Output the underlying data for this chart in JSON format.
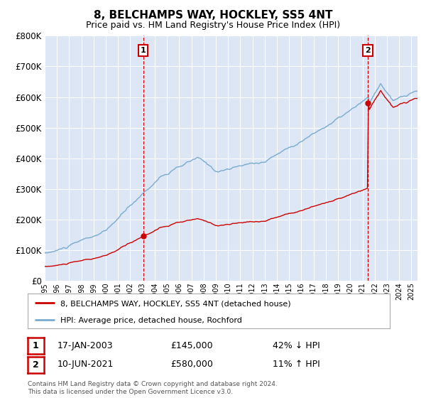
{
  "title": "8, BELCHAMPS WAY, HOCKLEY, SS5 4NT",
  "subtitle": "Price paid vs. HM Land Registry's House Price Index (HPI)",
  "legend_label_red": "8, BELCHAMPS WAY, HOCKLEY, SS5 4NT (detached house)",
  "legend_label_blue": "HPI: Average price, detached house, Rochford",
  "annotation1_date": "17-JAN-2003",
  "annotation1_price": "£145,000",
  "annotation1_hpi": "42% ↓ HPI",
  "annotation2_date": "10-JUN-2021",
  "annotation2_price": "£580,000",
  "annotation2_hpi": "11% ↑ HPI",
  "footer": "Contains HM Land Registry data © Crown copyright and database right 2024.\nThis data is licensed under the Open Government Licence v3.0.",
  "ylim": [
    0,
    800000
  ],
  "yticks": [
    0,
    100000,
    200000,
    300000,
    400000,
    500000,
    600000,
    700000,
    800000
  ],
  "ytick_labels": [
    "£0",
    "£100K",
    "£200K",
    "£300K",
    "£400K",
    "£500K",
    "£600K",
    "£700K",
    "£800K"
  ],
  "plot_bg_color": "#dce6f5",
  "red_color": "#cc0000",
  "blue_color": "#7aabcf",
  "grid_color": "#ffffff",
  "sale1_year": 2003.05,
  "sale1_price": 145000,
  "sale2_year": 2021.44,
  "sale2_price": 580000,
  "xlim_start": 1995,
  "xlim_end": 2025.5
}
